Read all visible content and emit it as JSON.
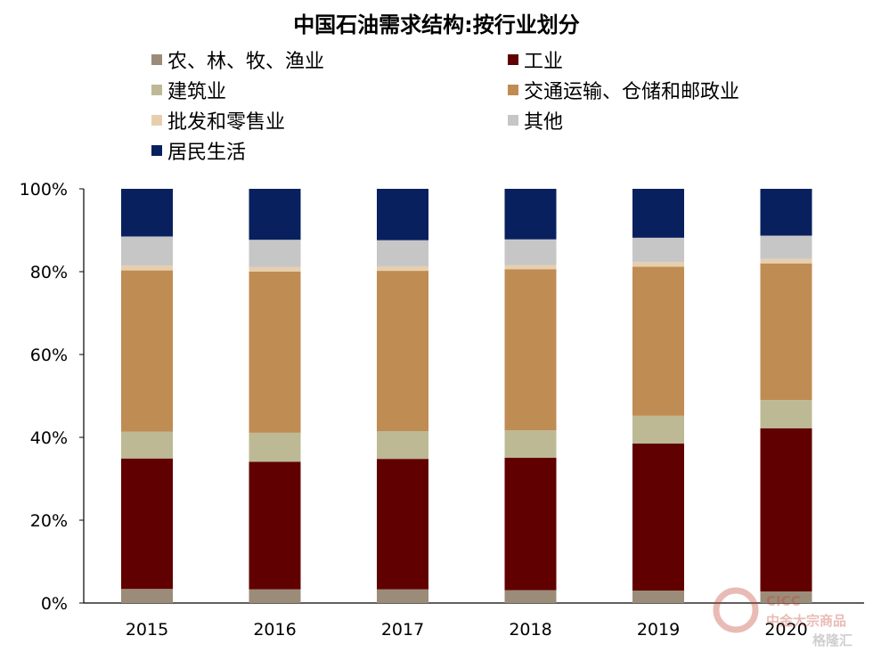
{
  "chart_data": {
    "type": "bar",
    "stacked": true,
    "title": "中国石油需求结构:按行业划分",
    "xlabel": "",
    "ylabel": "",
    "ylim": [
      0,
      100
    ],
    "yticks": [
      "0%",
      "20%",
      "40%",
      "60%",
      "80%",
      "100%"
    ],
    "categories": [
      "2015",
      "2016",
      "2017",
      "2018",
      "2019",
      "2020"
    ],
    "legend_position": "top",
    "series": [
      {
        "name": "农、林、牧、渔业",
        "color": "#9b8c79",
        "values": [
          3.4,
          3.3,
          3.3,
          3.1,
          3.0,
          2.8
        ]
      },
      {
        "name": "工业",
        "color": "#600000",
        "values": [
          31.5,
          30.8,
          31.5,
          32.0,
          35.5,
          39.4
        ]
      },
      {
        "name": "建筑业",
        "color": "#bdb995",
        "values": [
          6.5,
          7.0,
          6.7,
          6.6,
          6.7,
          6.8
        ]
      },
      {
        "name": "交通运输、仓储和邮政业",
        "color": "#bf8c54",
        "values": [
          38.9,
          38.9,
          38.7,
          38.9,
          36.0,
          33.0
        ]
      },
      {
        "name": "批发和零售业",
        "color": "#e7cfae",
        "values": [
          1.2,
          1.1,
          1.1,
          1.0,
          1.1,
          1.1
        ]
      },
      {
        "name": "其他",
        "color": "#c6c6c7",
        "values": [
          7.0,
          6.6,
          6.3,
          6.2,
          5.9,
          5.6
        ]
      },
      {
        "name": "居民生活",
        "color": "#08205e",
        "values": [
          11.5,
          12.3,
          12.4,
          12.2,
          11.8,
          11.3
        ]
      }
    ]
  },
  "watermark": {
    "brand": "CICC",
    "sub": "中金大宗商品",
    "site": "格隆汇"
  }
}
